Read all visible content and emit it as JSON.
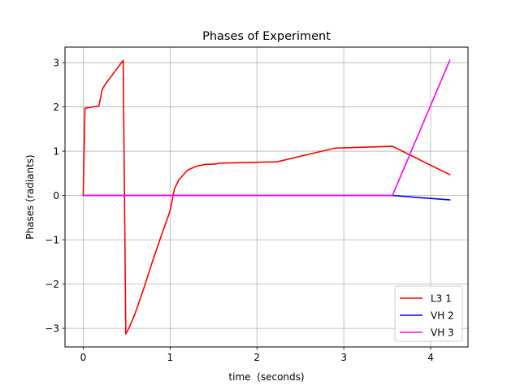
{
  "chart_data": {
    "type": "line",
    "title": "Phases of Experiment",
    "xlabel": "time  (seconds)",
    "ylabel": "Phases (radiants)",
    "xlim": [
      -0.21,
      4.43
    ],
    "ylim": [
      -3.42,
      3.35
    ],
    "xticks": [
      0,
      1,
      2,
      3,
      4
    ],
    "xtick_labels": [
      "0",
      "1",
      "2",
      "3",
      "4"
    ],
    "yticks": [
      -3,
      -2,
      -1,
      0,
      1,
      2,
      3
    ],
    "ytick_labels": [
      "−3",
      "−2",
      "−1",
      "0",
      "1",
      "2",
      "3"
    ],
    "grid": true,
    "legend_position": "bottom-right",
    "series": [
      {
        "name": "L3 1",
        "color": "#ff0000",
        "x": [
          0.0,
          0.02,
          0.18,
          0.22,
          0.26,
          0.46,
          0.49,
          0.53,
          0.6,
          0.7,
          0.8,
          0.9,
          1.0,
          1.05,
          1.1,
          1.2,
          1.3,
          1.4,
          1.5,
          1.53,
          1.56,
          2.23,
          2.9,
          3.56,
          4.22
        ],
        "y": [
          0.0,
          1.97,
          2.02,
          2.4,
          2.53,
          3.05,
          -3.13,
          -2.98,
          -2.65,
          -2.08,
          -1.47,
          -0.9,
          -0.35,
          0.15,
          0.35,
          0.57,
          0.66,
          0.7,
          0.71,
          0.71,
          0.73,
          0.76,
          1.07,
          1.11,
          0.47
        ]
      },
      {
        "name": "VH 2",
        "color": "#0000ff",
        "x": [
          0.0,
          3.56,
          4.22
        ],
        "y": [
          0.0,
          0.0,
          -0.1
        ]
      },
      {
        "name": "VH 3",
        "color": "#ff00ff",
        "x": [
          0.0,
          3.56,
          4.22
        ],
        "y": [
          0.0,
          0.0,
          3.05
        ]
      }
    ]
  }
}
